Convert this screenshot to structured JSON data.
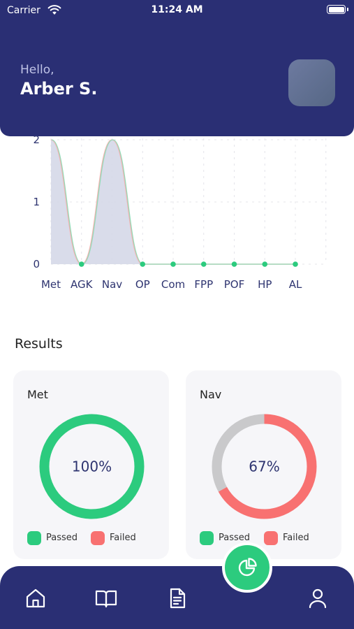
{
  "status_bar": {
    "carrier": "Carrier",
    "time": "11:24 AM"
  },
  "header": {
    "greeting": "Hello,",
    "username": "Arber S."
  },
  "chart_data": {
    "type": "area",
    "categories": [
      "Met",
      "AGK",
      "Nav",
      "OP",
      "Com",
      "FPP",
      "POF",
      "HP",
      "AL"
    ],
    "values": [
      2,
      0,
      2,
      0,
      0,
      0,
      0,
      0,
      0
    ],
    "y_ticks": [
      "0",
      "1",
      "2"
    ],
    "ylim": [
      0,
      2
    ],
    "grid": true,
    "fill_color": "#D5D8E8",
    "point_color": "#2CCB7E"
  },
  "results": {
    "title": "Results",
    "cards": [
      {
        "title": "Met",
        "percent_label": "100%",
        "passed_fraction": 1.0,
        "failed_fraction": 0.0,
        "remaining_fraction": 0.0
      },
      {
        "title": "Nav",
        "percent_label": "67%",
        "passed_fraction": 0.0,
        "failed_fraction": 0.67,
        "remaining_fraction": 0.33
      }
    ],
    "legend": {
      "passed_label": "Passed",
      "failed_label": "Failed"
    }
  },
  "colors": {
    "primary": "#2A2F74",
    "passed": "#2CCB7E",
    "failed": "#F87171",
    "remaining": "#C9C9CB",
    "card_bg": "#F6F6F9"
  },
  "bottom_nav": {
    "items": [
      {
        "icon": "home-icon"
      },
      {
        "icon": "book-icon"
      },
      {
        "icon": "document-icon"
      },
      {
        "icon": "pie-chart-icon"
      },
      {
        "icon": "user-icon"
      }
    ]
  }
}
